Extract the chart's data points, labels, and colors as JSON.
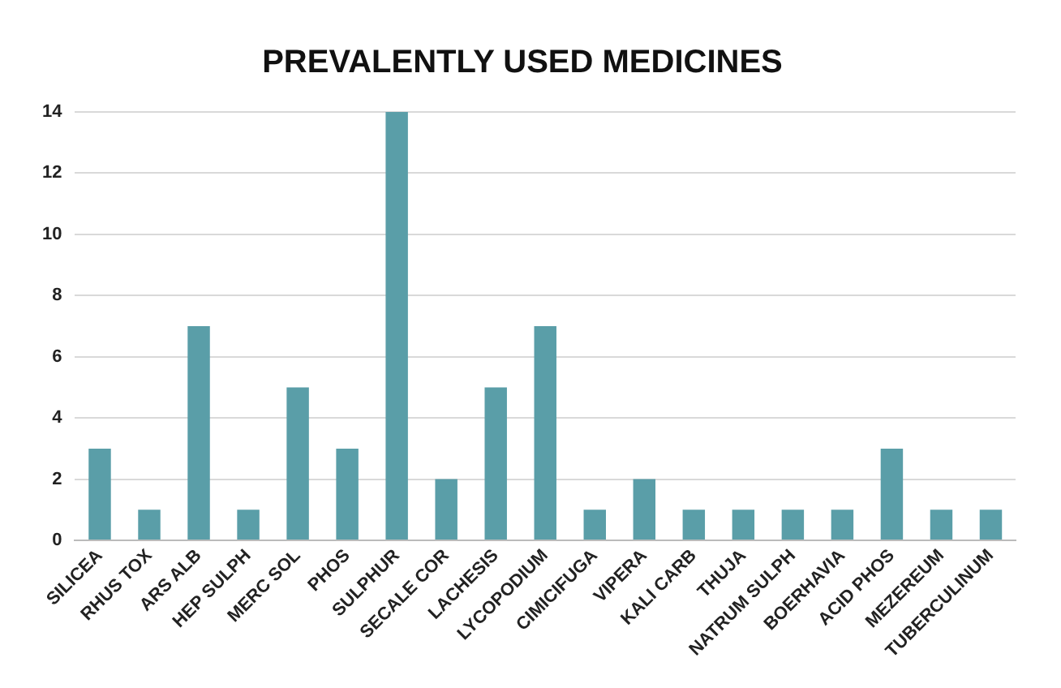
{
  "chart_data": {
    "type": "bar",
    "title": "PREVALENTLY USED MEDICINES",
    "categories": [
      "SILICEA",
      "RHUS TOX",
      "ARS ALB",
      "HEP SULPH",
      "MERC SOL",
      "PHOS",
      "SULPHUR",
      "SECALE COR",
      "LACHESIS",
      "LYCOPODIUM",
      "CIMICIFUGA",
      "VIPERA",
      "KALI CARB",
      "THUJA",
      "NATRUM SULPH",
      "BOERHAVIA",
      "ACID PHOS",
      "MEZEREUM",
      "TUBERCULINUM"
    ],
    "values": [
      3,
      1,
      7,
      1,
      5,
      3,
      14,
      2,
      5,
      7,
      1,
      2,
      1,
      1,
      1,
      1,
      3,
      1,
      1
    ],
    "color": "#5a9ea8",
    "ylim": [
      0,
      14
    ],
    "yticks": [
      0,
      2,
      4,
      6,
      8,
      10,
      12,
      14
    ],
    "grid": "y"
  }
}
